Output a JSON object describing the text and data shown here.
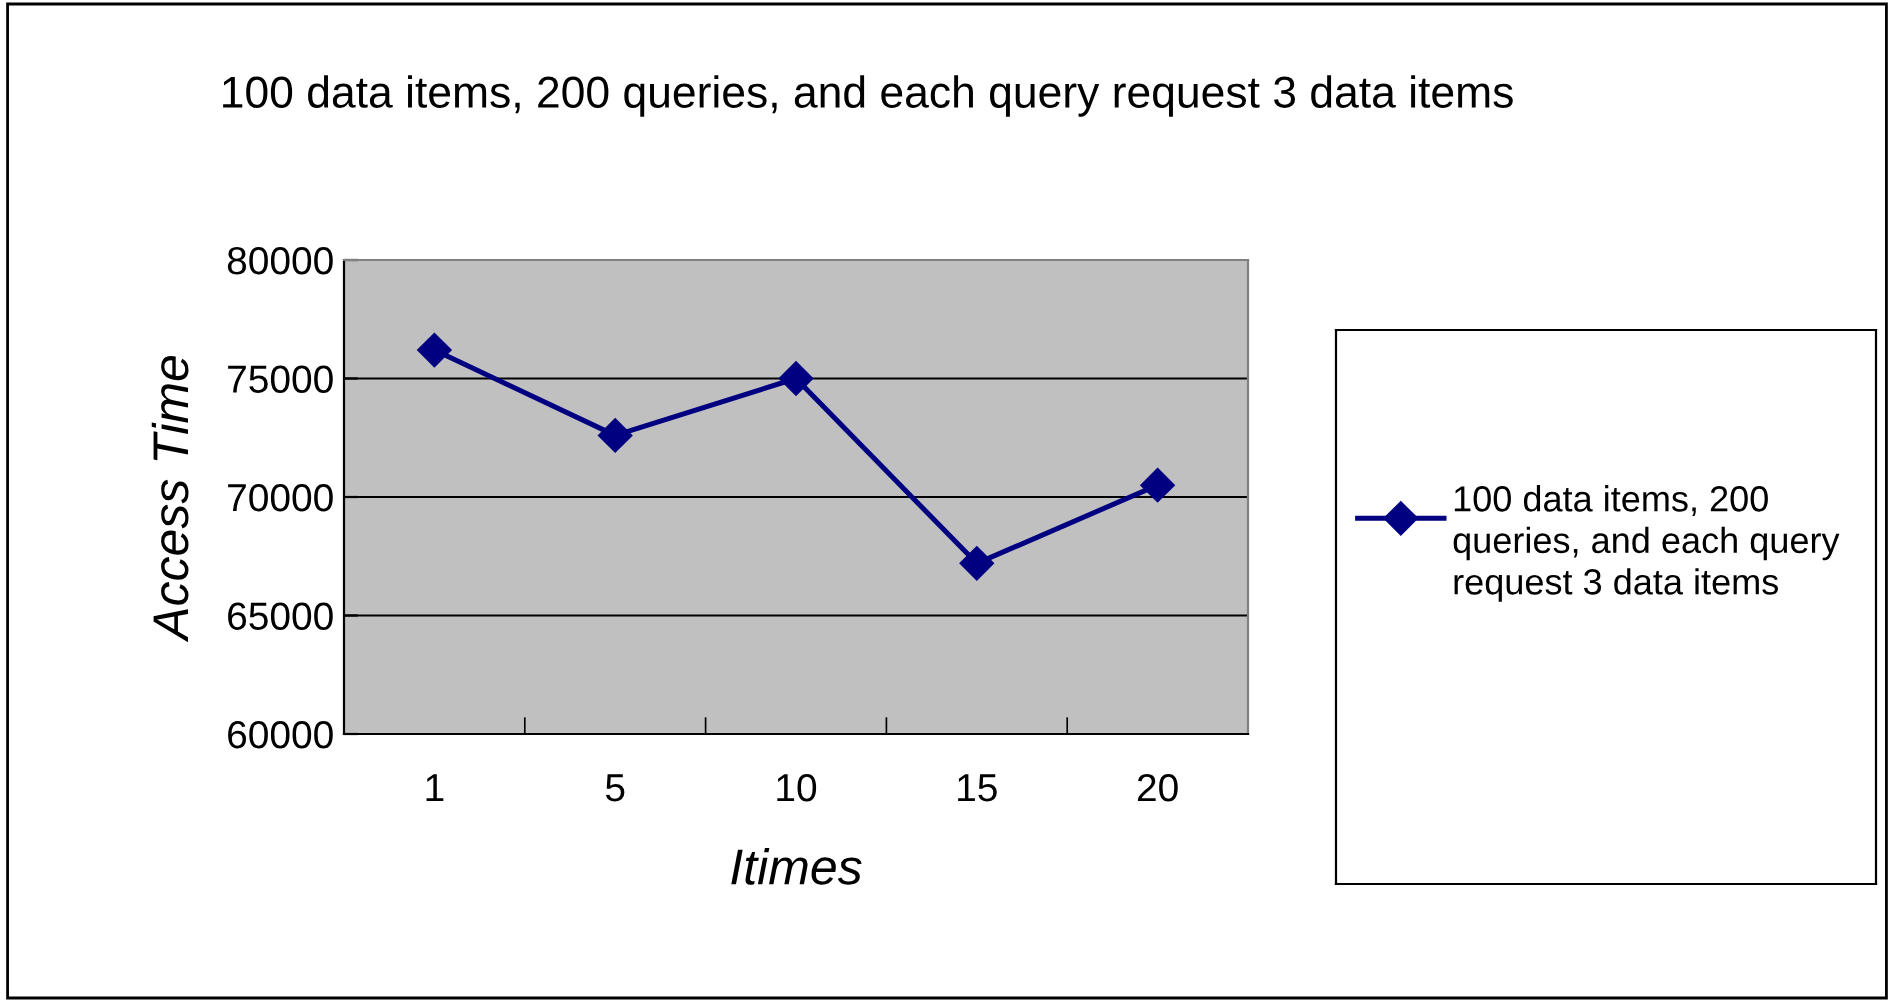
{
  "chart_data": {
    "type": "line",
    "title": "100 data items, 200 queries, and each query request 3 data items",
    "xlabel": "Itimes",
    "ylabel": "Access Time",
    "categories": [
      "1",
      "5",
      "10",
      "15",
      "20"
    ],
    "series": [
      {
        "name": "100 data items, 200 queries, and each query request 3 data items",
        "color": "#000080",
        "values": [
          76200,
          72600,
          75000,
          67200,
          70500
        ]
      }
    ],
    "ylim": [
      60000,
      80000
    ],
    "yticks": [
      60000,
      65000,
      70000,
      75000,
      80000
    ],
    "grid": "y",
    "legend": "right",
    "marker": "diamond",
    "line_style": "solid"
  }
}
